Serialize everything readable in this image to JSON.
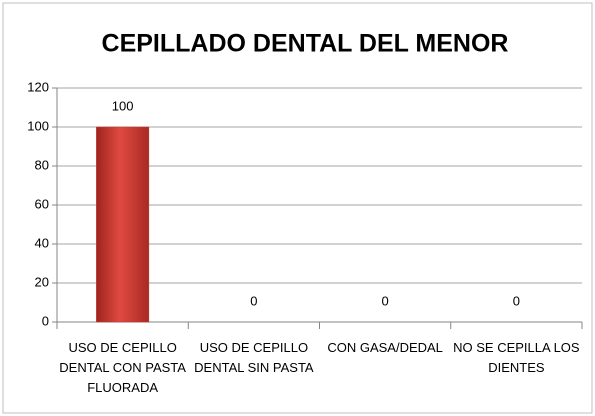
{
  "chart_data": {
    "type": "bar",
    "title": "CEPILLADO DENTAL DEL MENOR",
    "categories": [
      "USO DE CEPILLO DENTAL CON PASTA FLUORADA",
      "USO DE CEPILLO DENTAL SIN PASTA",
      "CON GASA/DEDAL",
      "NO SE CEPILLA LOS DIENTES"
    ],
    "values": [
      100,
      0,
      0,
      0
    ],
    "color": "#c0392b",
    "ylim": [
      0,
      120
    ],
    "yticks": [
      0,
      20,
      40,
      60,
      80,
      100,
      120
    ],
    "grid": true
  }
}
